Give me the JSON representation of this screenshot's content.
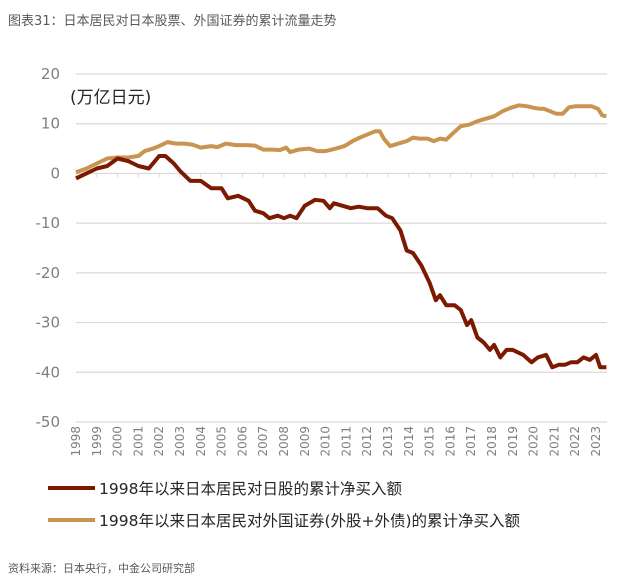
{
  "title": "图表31：日本居民对日本股票、外国证券的累计流量走势",
  "source": "资料来源：日本央行，中金公司研究部",
  "chart_data": {
    "type": "line",
    "title": "图表31：日本居民对日本股票、外国证券的累计流量走势",
    "ylabel": "(万亿日元)",
    "xlabel": "",
    "ylim": [
      -50,
      20
    ],
    "yticks": [
      20,
      10,
      0,
      -10,
      -20,
      -30,
      -40,
      -50
    ],
    "xlim": [
      1998,
      2023.5
    ],
    "xticks": [
      "1998",
      "1999",
      "2000",
      "2001",
      "2002",
      "2003",
      "2004",
      "2005",
      "2006",
      "2007",
      "2008",
      "2009",
      "2010",
      "2011",
      "2012",
      "2013",
      "2014",
      "2015",
      "2016",
      "2017",
      "2018",
      "2019",
      "2020",
      "2021",
      "2022",
      "2023"
    ],
    "grid": true,
    "legend_position": "bottom",
    "series": [
      {
        "name": "1998年以来日本居民对日股的累计净买入额",
        "color": "#7b1a00",
        "points": [
          [
            1998.0,
            -1
          ],
          [
            1998.5,
            0
          ],
          [
            1999.0,
            1
          ],
          [
            1999.5,
            1.5
          ],
          [
            2000.0,
            3
          ],
          [
            2000.5,
            2.5
          ],
          [
            2001.0,
            1.5
          ],
          [
            2001.5,
            1
          ],
          [
            2002.0,
            3.5
          ],
          [
            2002.3,
            3.5
          ],
          [
            2002.7,
            2
          ],
          [
            2003.0,
            0.5
          ],
          [
            2003.5,
            -1.5
          ],
          [
            2004.0,
            -1.5
          ],
          [
            2004.5,
            -3
          ],
          [
            2005.0,
            -3
          ],
          [
            2005.3,
            -5
          ],
          [
            2005.8,
            -4.5
          ],
          [
            2006.3,
            -5.5
          ],
          [
            2006.6,
            -7.5
          ],
          [
            2007.0,
            -8
          ],
          [
            2007.3,
            -9
          ],
          [
            2007.7,
            -8.5
          ],
          [
            2008.0,
            -9
          ],
          [
            2008.3,
            -8.5
          ],
          [
            2008.6,
            -9
          ],
          [
            2009.0,
            -6.5
          ],
          [
            2009.5,
            -5.3
          ],
          [
            2009.9,
            -5.5
          ],
          [
            2010.2,
            -7
          ],
          [
            2010.4,
            -6
          ],
          [
            2010.8,
            -6.5
          ],
          [
            2011.2,
            -7
          ],
          [
            2011.6,
            -6.7
          ],
          [
            2012.0,
            -7
          ],
          [
            2012.5,
            -7
          ],
          [
            2012.9,
            -8.5
          ],
          [
            2013.2,
            -9
          ],
          [
            2013.6,
            -11.5
          ],
          [
            2013.9,
            -15.5
          ],
          [
            2014.2,
            -16
          ],
          [
            2014.6,
            -18.5
          ],
          [
            2015.0,
            -22
          ],
          [
            2015.3,
            -25.5
          ],
          [
            2015.5,
            -24.5
          ],
          [
            2015.8,
            -26.5
          ],
          [
            2016.2,
            -26.5
          ],
          [
            2016.5,
            -27.5
          ],
          [
            2016.8,
            -30.5
          ],
          [
            2017.0,
            -29.5
          ],
          [
            2017.3,
            -33
          ],
          [
            2017.6,
            -34
          ],
          [
            2017.9,
            -35.5
          ],
          [
            2018.1,
            -34.5
          ],
          [
            2018.4,
            -37
          ],
          [
            2018.7,
            -35.5
          ],
          [
            2019.0,
            -35.5
          ],
          [
            2019.5,
            -36.5
          ],
          [
            2019.9,
            -38
          ],
          [
            2020.2,
            -37
          ],
          [
            2020.6,
            -36.5
          ],
          [
            2020.9,
            -39
          ],
          [
            2021.2,
            -38.5
          ],
          [
            2021.5,
            -38.5
          ],
          [
            2021.8,
            -38
          ],
          [
            2022.1,
            -38
          ],
          [
            2022.4,
            -37
          ],
          [
            2022.7,
            -37.5
          ],
          [
            2023.0,
            -36.5
          ],
          [
            2023.2,
            -39
          ],
          [
            2023.5,
            -39
          ]
        ]
      },
      {
        "name": "1998年以来日本居民对外国证券(外股+外债)的累计净买入额",
        "color": "#c9944f",
        "points": [
          [
            1998.0,
            0.2
          ],
          [
            1998.5,
            1
          ],
          [
            1999.0,
            2
          ],
          [
            1999.5,
            3
          ],
          [
            2000.0,
            3.2
          ],
          [
            2000.5,
            3.2
          ],
          [
            2001.0,
            3.5
          ],
          [
            2001.3,
            4.5
          ],
          [
            2001.7,
            5
          ],
          [
            2002.0,
            5.5
          ],
          [
            2002.4,
            6.3
          ],
          [
            2002.8,
            6
          ],
          [
            2003.2,
            6
          ],
          [
            2003.6,
            5.8
          ],
          [
            2004.0,
            5.2
          ],
          [
            2004.5,
            5.5
          ],
          [
            2004.8,
            5.3
          ],
          [
            2005.2,
            6
          ],
          [
            2005.7,
            5.7
          ],
          [
            2006.2,
            5.7
          ],
          [
            2006.6,
            5.6
          ],
          [
            2007.0,
            4.8
          ],
          [
            2007.5,
            4.8
          ],
          [
            2007.8,
            4.7
          ],
          [
            2008.1,
            5.2
          ],
          [
            2008.3,
            4.3
          ],
          [
            2008.7,
            4.8
          ],
          [
            2009.2,
            5
          ],
          [
            2009.6,
            4.5
          ],
          [
            2010.0,
            4.5
          ],
          [
            2010.5,
            5
          ],
          [
            2010.9,
            5.5
          ],
          [
            2011.3,
            6.5
          ],
          [
            2011.7,
            7.3
          ],
          [
            2012.1,
            8
          ],
          [
            2012.4,
            8.5
          ],
          [
            2012.6,
            8.5
          ],
          [
            2012.8,
            7
          ],
          [
            2013.1,
            5.5
          ],
          [
            2013.5,
            6
          ],
          [
            2013.9,
            6.5
          ],
          [
            2014.2,
            7.2
          ],
          [
            2014.5,
            7
          ],
          [
            2014.9,
            7
          ],
          [
            2015.2,
            6.5
          ],
          [
            2015.5,
            7
          ],
          [
            2015.8,
            6.8
          ],
          [
            2016.1,
            8
          ],
          [
            2016.5,
            9.5
          ],
          [
            2016.9,
            9.8
          ],
          [
            2017.3,
            10.5
          ],
          [
            2017.7,
            11
          ],
          [
            2018.1,
            11.5
          ],
          [
            2018.5,
            12.5
          ],
          [
            2018.9,
            13.2
          ],
          [
            2019.3,
            13.7
          ],
          [
            2019.7,
            13.5
          ],
          [
            2020.0,
            13.2
          ],
          [
            2020.3,
            13
          ],
          [
            2020.5,
            13
          ],
          [
            2020.8,
            12.5
          ],
          [
            2021.1,
            12
          ],
          [
            2021.4,
            12
          ],
          [
            2021.7,
            13.3
          ],
          [
            2022.0,
            13.5
          ],
          [
            2022.4,
            13.5
          ],
          [
            2022.8,
            13.5
          ],
          [
            2023.1,
            13
          ],
          [
            2023.3,
            11.7
          ],
          [
            2023.5,
            11.5
          ]
        ]
      }
    ]
  }
}
